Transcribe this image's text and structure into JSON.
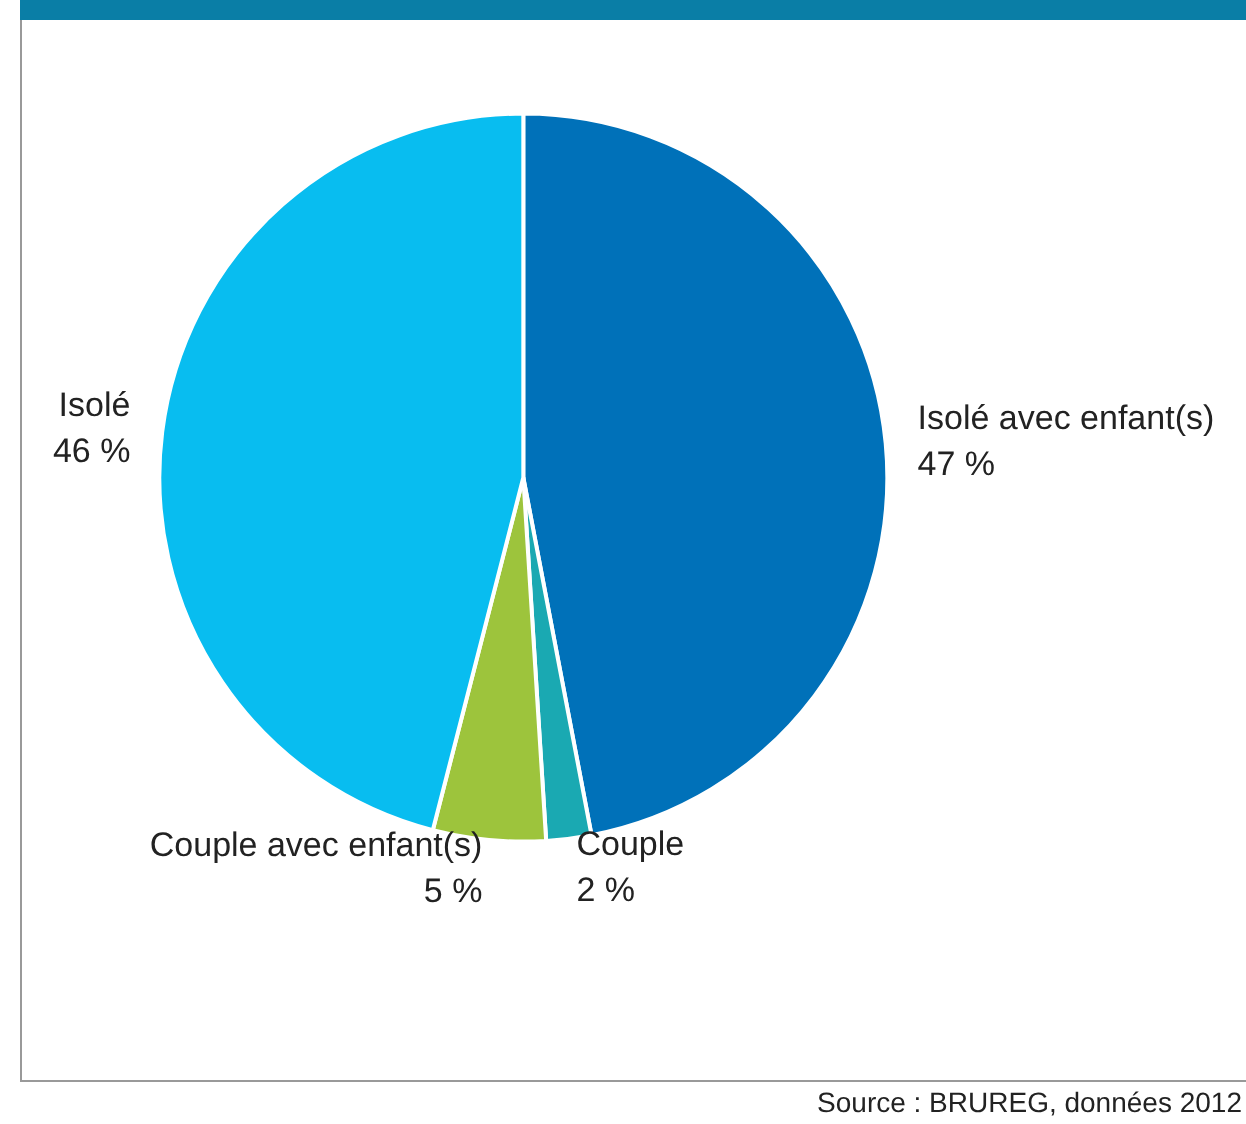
{
  "chart_data": {
    "type": "pie",
    "categories": [
      "Isolé avec enfant(s)",
      "Couple",
      "Couple avec enfant(s)",
      "Isolé"
    ],
    "values": [
      47,
      2,
      5,
      46
    ],
    "colors": [
      "#0071b9",
      "#1aa9b2",
      "#9dc43c",
      "#08bdf0"
    ],
    "value_labels": [
      "47 %",
      "2 %",
      "5 %",
      "46 %"
    ],
    "annotations": [
      "Source : BRUREG, données 2012"
    ]
  }
}
